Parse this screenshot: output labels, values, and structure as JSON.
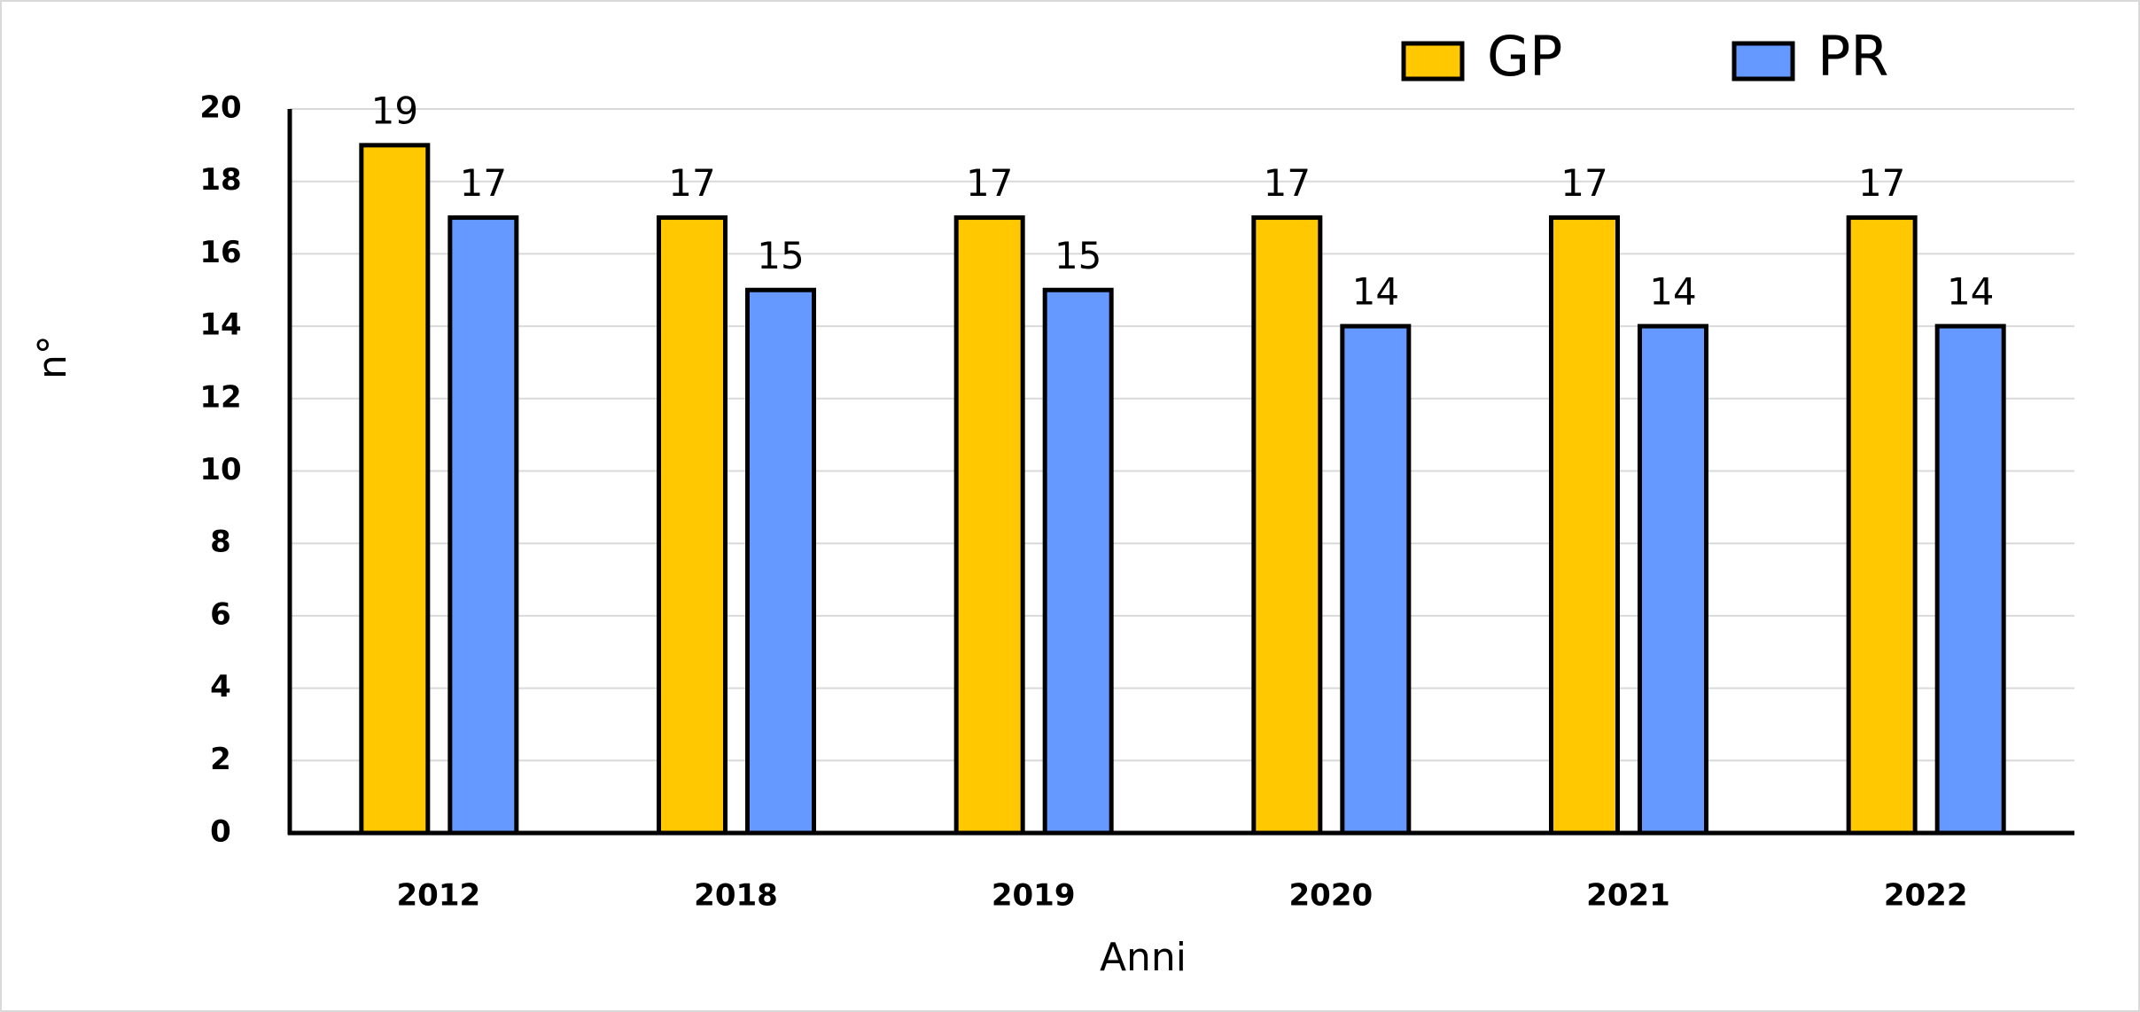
{
  "chart_data": {
    "type": "bar",
    "x_label": "Anni",
    "y_label": "n°",
    "categories": [
      "2012",
      "2018",
      "2019",
      "2020",
      "2021",
      "2022"
    ],
    "series": [
      {
        "name": "GP",
        "color": "#ffc800",
        "values": [
          19,
          17,
          17,
          17,
          17,
          17
        ]
      },
      {
        "name": "PR",
        "color": "#6699ff",
        "values": [
          17,
          15,
          15,
          14,
          14,
          14
        ]
      }
    ],
    "ylim": [
      0,
      20
    ],
    "yticks": [
      0,
      2,
      4,
      6,
      8,
      10,
      12,
      14,
      16,
      18,
      20
    ],
    "grid": true,
    "legend": "top"
  }
}
